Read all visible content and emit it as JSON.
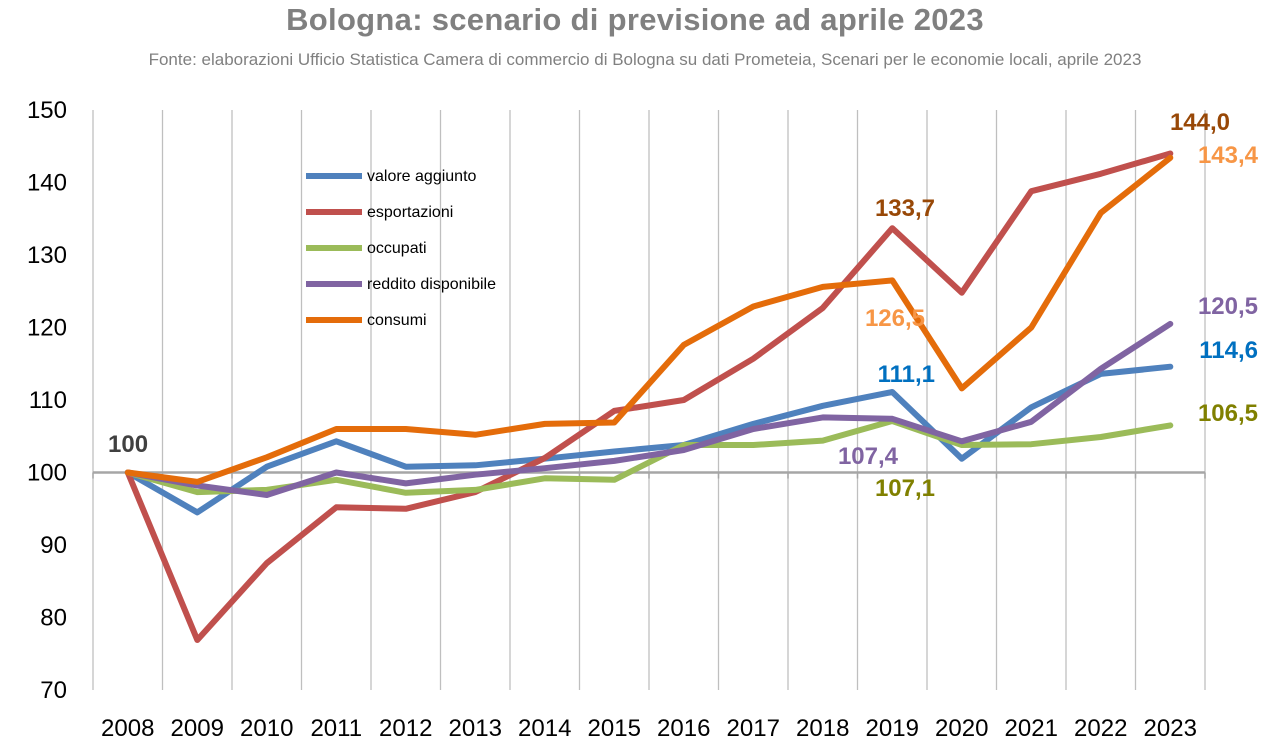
{
  "chart_data": {
    "type": "line",
    "title": "Bologna: scenario di previsione ad aprile 2023",
    "subtitle": "Fonte: elaborazioni Ufficio Statistica Camera di commercio di Bologna su dati Prometeia, Scenari per le economie locali, aprile 2023",
    "x": [
      "2008",
      "2009",
      "2010",
      "2011",
      "2012",
      "2013",
      "2014",
      "2015",
      "2016",
      "2017",
      "2018",
      "2019",
      "2020",
      "2021",
      "2022",
      "2023"
    ],
    "ylim": [
      70,
      150
    ],
    "yticks": [
      70,
      80,
      90,
      100,
      110,
      120,
      130,
      140,
      150
    ],
    "grid": "vertical",
    "legend_position": "upper-left",
    "series": [
      {
        "name": "valore aggiunto",
        "color": "#4F81BD",
        "values": [
          100,
          94.5,
          100.8,
          104.3,
          100.8,
          101.0,
          101.9,
          102.9,
          103.8,
          106.7,
          109.2,
          111.1,
          101.9,
          109.0,
          113.6,
          114.6
        ]
      },
      {
        "name": "esportazioni",
        "color": "#C0504D",
        "values": [
          100,
          76.9,
          87.5,
          95.2,
          95.0,
          97.3,
          102.0,
          108.5,
          110.0,
          115.7,
          122.7,
          133.7,
          124.8,
          138.8,
          141.2,
          144.0
        ]
      },
      {
        "name": "occupati",
        "color": "#9BBB59",
        "values": [
          100,
          97.3,
          97.6,
          99.0,
          97.2,
          97.6,
          99.2,
          99.0,
          103.8,
          103.8,
          104.4,
          107.1,
          103.8,
          103.9,
          104.9,
          106.5
        ]
      },
      {
        "name": "reddito disponibile",
        "color": "#8064A2",
        "values": [
          100,
          98.2,
          96.9,
          100.0,
          98.5,
          99.7,
          100.6,
          101.6,
          103.1,
          106.0,
          107.6,
          107.4,
          104.3,
          107.0,
          114.3,
          120.5
        ]
      },
      {
        "name": "consumi",
        "color": "#E46C0A",
        "values": [
          100,
          98.7,
          102.1,
          106.0,
          106.0,
          105.2,
          106.7,
          106.9,
          117.6,
          122.9,
          125.6,
          126.5,
          111.6,
          120.0,
          135.8,
          143.4
        ]
      }
    ],
    "annotations": [
      {
        "text": "100",
        "color": "#404040"
      },
      {
        "text": "144,0",
        "color": "#984807"
      },
      {
        "text": "143,4",
        "color": "#F79646"
      },
      {
        "text": "133,7",
        "color": "#984807"
      },
      {
        "text": "126,5",
        "color": "#F79646"
      },
      {
        "text": "120,5",
        "color": "#8064A2"
      },
      {
        "text": "114,6",
        "color": "#0070C0"
      },
      {
        "text": "111,1",
        "color": "#0070C0"
      },
      {
        "text": "107,4",
        "color": "#8064A2"
      },
      {
        "text": "107,1",
        "color": "#808000"
      },
      {
        "text": "106,5",
        "color": "#808000"
      }
    ]
  }
}
